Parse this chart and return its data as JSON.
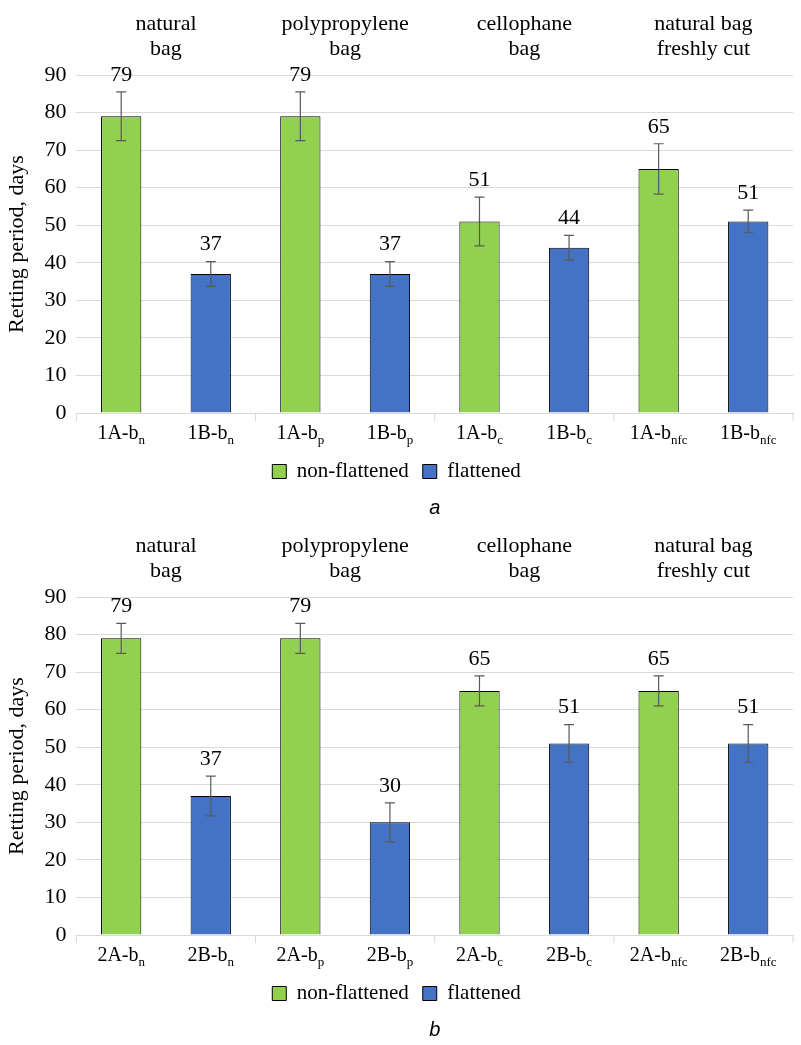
{
  "chart_data": [
    {
      "type": "bar",
      "ylabel": "Retting period, days",
      "categories": [
        "1A-b$_{n}$",
        "1B-b$_{n}$",
        "1A-b$_{p}$",
        "1B-b$_{p}$",
        "1A-b$_{c}$",
        "1B-b$_{c}$",
        "1A-b$_{nfc}$",
        "1B-b$_{nfc}$"
      ],
      "series": [
        {
          "name": "non-flattened",
          "color": "#92d050",
          "values": [
            79,
            null,
            79,
            null,
            51,
            null,
            65,
            null
          ],
          "errors": [
            6.5,
            null,
            6.5,
            null,
            6.5,
            null,
            6.7,
            null
          ]
        },
        {
          "name": "flattened",
          "color": "#4472c4",
          "values": [
            null,
            37,
            null,
            37,
            null,
            44,
            null,
            51
          ],
          "errors": [
            null,
            3.3,
            null,
            3.3,
            null,
            3.3,
            null,
            3
          ]
        }
      ],
      "ylim": [
        0,
        90
      ],
      "yticks": [
        0,
        10,
        20,
        30,
        40,
        50,
        60,
        70,
        80,
        90
      ],
      "grid": "y",
      "legend": "bottom",
      "data_labels": true,
      "annotations": [
        "natural bag",
        "polypropylene bag",
        "cellophane bag",
        "natural bag freshly cut",
        "a"
      ]
    },
    {
      "type": "bar",
      "ylabel": "Retting period, days",
      "categories": [
        "2A-b$_{n}$",
        "2B-b$_{n}$",
        "2A-b$_{p}$",
        "2B-b$_{p}$",
        "2A-b$_{c}$",
        "2B-b$_{c}$",
        "2A-b$_{nfc}$",
        "2B-b$_{nfc}$"
      ],
      "series": [
        {
          "name": "non-flattened",
          "color": "#92d050",
          "values": [
            79,
            null,
            79,
            null,
            65,
            null,
            65,
            null
          ],
          "errors": [
            4,
            null,
            4,
            null,
            4,
            null,
            4,
            null
          ]
        },
        {
          "name": "flattened",
          "color": "#4472c4",
          "values": [
            null,
            37,
            null,
            30,
            null,
            51,
            null,
            51
          ],
          "errors": [
            null,
            5.3,
            null,
            5.2,
            null,
            5,
            null,
            5
          ]
        }
      ],
      "ylim": [
        0,
        90
      ],
      "yticks": [
        0,
        10,
        20,
        30,
        40,
        50,
        60,
        70,
        80,
        90
      ],
      "grid": "y",
      "legend": "bottom",
      "data_labels": true,
      "annotations": [
        "natural bag",
        "polypropylene bag",
        "cellophane bag",
        "natural bag freshly cut",
        "b"
      ]
    }
  ]
}
